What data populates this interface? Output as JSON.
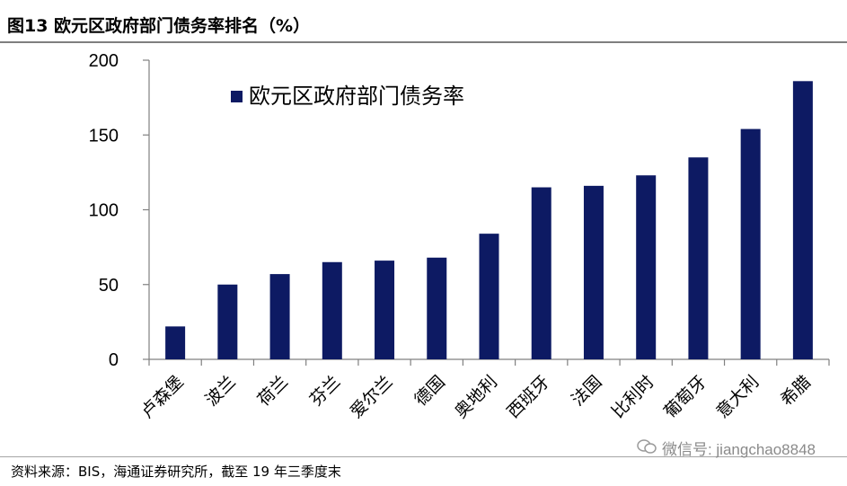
{
  "header": {
    "title": "图13 欧元区政府部门债务率排名（%）"
  },
  "footer": {
    "source": "资料来源：BIS，海通证券研究所，截至 19 年三季度末",
    "watermark": "微信号: jiangchao8848"
  },
  "colors": {
    "bar": "#0d1a63",
    "axis": "#808080",
    "text": "#000000"
  },
  "chart_data": {
    "type": "bar",
    "categories": [
      "卢森堡",
      "波兰",
      "荷兰",
      "芬兰",
      "爱尔兰",
      "德国",
      "奥地利",
      "西班牙",
      "法国",
      "比利时",
      "葡萄牙",
      "意大利",
      "希腊"
    ],
    "series": [
      {
        "name": "欧元区政府部门债务率",
        "values": [
          22,
          50,
          57,
          65,
          66,
          68,
          84,
          115,
          116,
          123,
          135,
          154,
          186
        ]
      }
    ],
    "yticks": [
      "0",
      "50",
      "100",
      "150",
      "200"
    ],
    "ylim": [
      0,
      200
    ],
    "legend": "top-left",
    "grid": false
  }
}
